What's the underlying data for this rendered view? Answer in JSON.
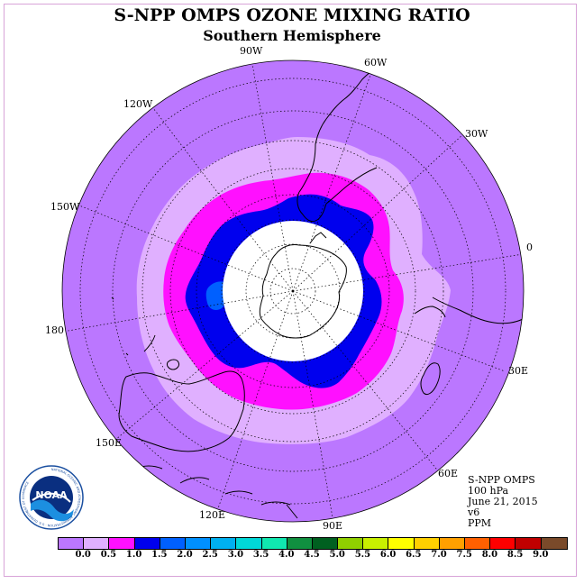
{
  "title": "S-NPP OMPS OZONE MIXING RATIO",
  "subtitle": "Southern Hemisphere",
  "longitude_labels": {
    "lon_90w": "90W",
    "lon_60w": "60W",
    "lon_30w": "30W",
    "lon_0": "0",
    "lon_30e": "30E",
    "lon_60e": "60E",
    "lon_90e": "90E",
    "lon_120e": "120E",
    "lon_150e": "150E",
    "lon_180": "180",
    "lon_150w": "150W",
    "lon_120w": "120W"
  },
  "info": {
    "instrument": "S-NPP OMPS",
    "level": "100 hPa",
    "date": "June 21, 2015",
    "version": "v6",
    "units": "PPM"
  },
  "logo": {
    "text": "NOAA",
    "ring_text": "NATIONAL OCEANIC AND ATMOSPHERIC ADMINISTRATION · U.S. DEPARTMENT OF COMMERCE"
  },
  "colorbar": {
    "colors": [
      "#bb77ff",
      "#e0b0ff",
      "#ff10ff",
      "#0000ee",
      "#0060ff",
      "#0090ff",
      "#00b0f0",
      "#00d8d8",
      "#10e8b0",
      "#109040",
      "#006020",
      "#90d000",
      "#c8f000",
      "#ffff00",
      "#ffd000",
      "#ffa000",
      "#ff6000",
      "#ff0000",
      "#c00000",
      "#7a4a2a"
    ],
    "ticks": [
      "0.0",
      "0.5",
      "1.0",
      "1.5",
      "2.0",
      "2.5",
      "3.0",
      "3.5",
      "4.0",
      "4.5",
      "5.0",
      "5.5",
      "6.0",
      "6.5",
      "7.0",
      "7.5",
      "8.0",
      "8.5",
      "9.0"
    ]
  },
  "chart_data": {
    "type": "heatmap",
    "projection": "south polar stereographic",
    "variable": "ozone mixing ratio",
    "units": "PPM",
    "level": "100 hPa",
    "levels": [
      0.0,
      0.5,
      1.0,
      1.5,
      2.0,
      2.5,
      3.0,
      3.5,
      4.0,
      4.5,
      5.0,
      5.5,
      6.0,
      6.5,
      7.0,
      7.5,
      8.0,
      8.5,
      9.0
    ],
    "regions": [
      {
        "band": "0.0-0.5",
        "area": "outer domain, tropics and subtropics"
      },
      {
        "band": "0.5-1.0",
        "area": "mid-latitude ring"
      },
      {
        "band": "1.0-1.5",
        "area": "polar vortex edge"
      },
      {
        "band": "1.5-2.0",
        "area": "inner vortex ring"
      },
      {
        "band": "2.0-2.5",
        "area": "small patch near 180"
      }
    ],
    "missing_data": "polar night region (white disk)"
  }
}
